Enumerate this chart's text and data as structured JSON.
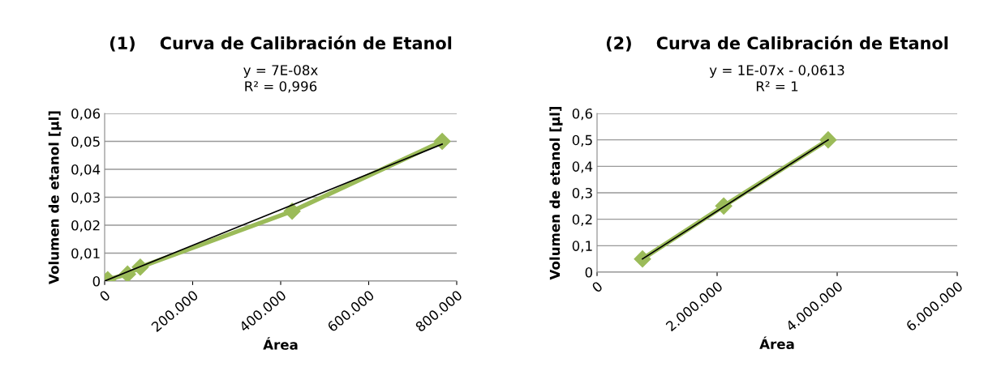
{
  "chart_data": [
    {
      "type": "line",
      "title": "(1)    Curva de Calibración de Etanol",
      "subtitle": "y = 7E-08x\nR² = 0,996",
      "xlabel": "Área",
      "ylabel": "Volumen de etanol [µl]",
      "x": [
        7000,
        52000,
        81000,
        426000,
        767000
      ],
      "series": [
        {
          "color": "#9bbb59",
          "marker": "diamond",
          "values": [
            0.0005,
            0.0025,
            0.005,
            0.025,
            0.05
          ]
        },
        {
          "color": "#000000",
          "marker": "none",
          "x": [
            0,
            767000
          ],
          "values": [
            0,
            0.049
          ]
        }
      ],
      "xlim": [
        0,
        800000
      ],
      "xticks": [
        0,
        {
          "value": 200000,
          "label": "200.000"
        },
        {
          "value": 400000,
          "label": "400.000"
        },
        {
          "value": 600000,
          "label": "600.000"
        },
        {
          "value": 800000,
          "label": "800.000"
        }
      ],
      "ylim": [
        0,
        0.06
      ],
      "yticks": [
        {
          "value": 0,
          "label": "0"
        },
        {
          "value": 0.01,
          "label": "0,01"
        },
        {
          "value": 0.02,
          "label": "0,02"
        },
        {
          "value": 0.03,
          "label": "0,03"
        },
        {
          "value": 0.04,
          "label": "0,04"
        },
        {
          "value": 0.05,
          "label": "0,05"
        },
        {
          "value": 0.06,
          "label": "0,06"
        }
      ],
      "grid": "y",
      "legend": false
    },
    {
      "type": "line",
      "title": "(2)    Curva de Calibración de Etanol",
      "subtitle": "y = 1E-07x - 0,0613\nR² = 1",
      "xlabel": "Área",
      "ylabel": "Volumen de etanol [µl]",
      "x": [
        757000,
        2110000,
        3850000
      ],
      "series": [
        {
          "color": "#9bbb59",
          "marker": "diamond",
          "values": [
            0.05,
            0.25,
            0.5
          ]
        },
        {
          "color": "#000000",
          "marker": "none",
          "x": [
            757000,
            3850000
          ],
          "values": [
            0.05,
            0.5
          ]
        }
      ],
      "xlim": [
        0,
        6000000
      ],
      "xticks": [
        0,
        {
          "value": 2000000,
          "label": "2.000.000"
        },
        {
          "value": 4000000,
          "label": "4.000.000"
        },
        {
          "value": 6000000,
          "label": "6.000.000"
        }
      ],
      "ylim": [
        0,
        0.6
      ],
      "yticks": [
        {
          "value": 0,
          "label": "0"
        },
        {
          "value": 0.1,
          "label": "0,1"
        },
        {
          "value": 0.2,
          "label": "0,2"
        },
        {
          "value": 0.3,
          "label": "0,3"
        },
        {
          "value": 0.4,
          "label": "0,4"
        },
        {
          "value": 0.5,
          "label": "0,5"
        },
        {
          "value": 0.6,
          "label": "0,6"
        }
      ],
      "grid": "y",
      "legend": false
    }
  ]
}
